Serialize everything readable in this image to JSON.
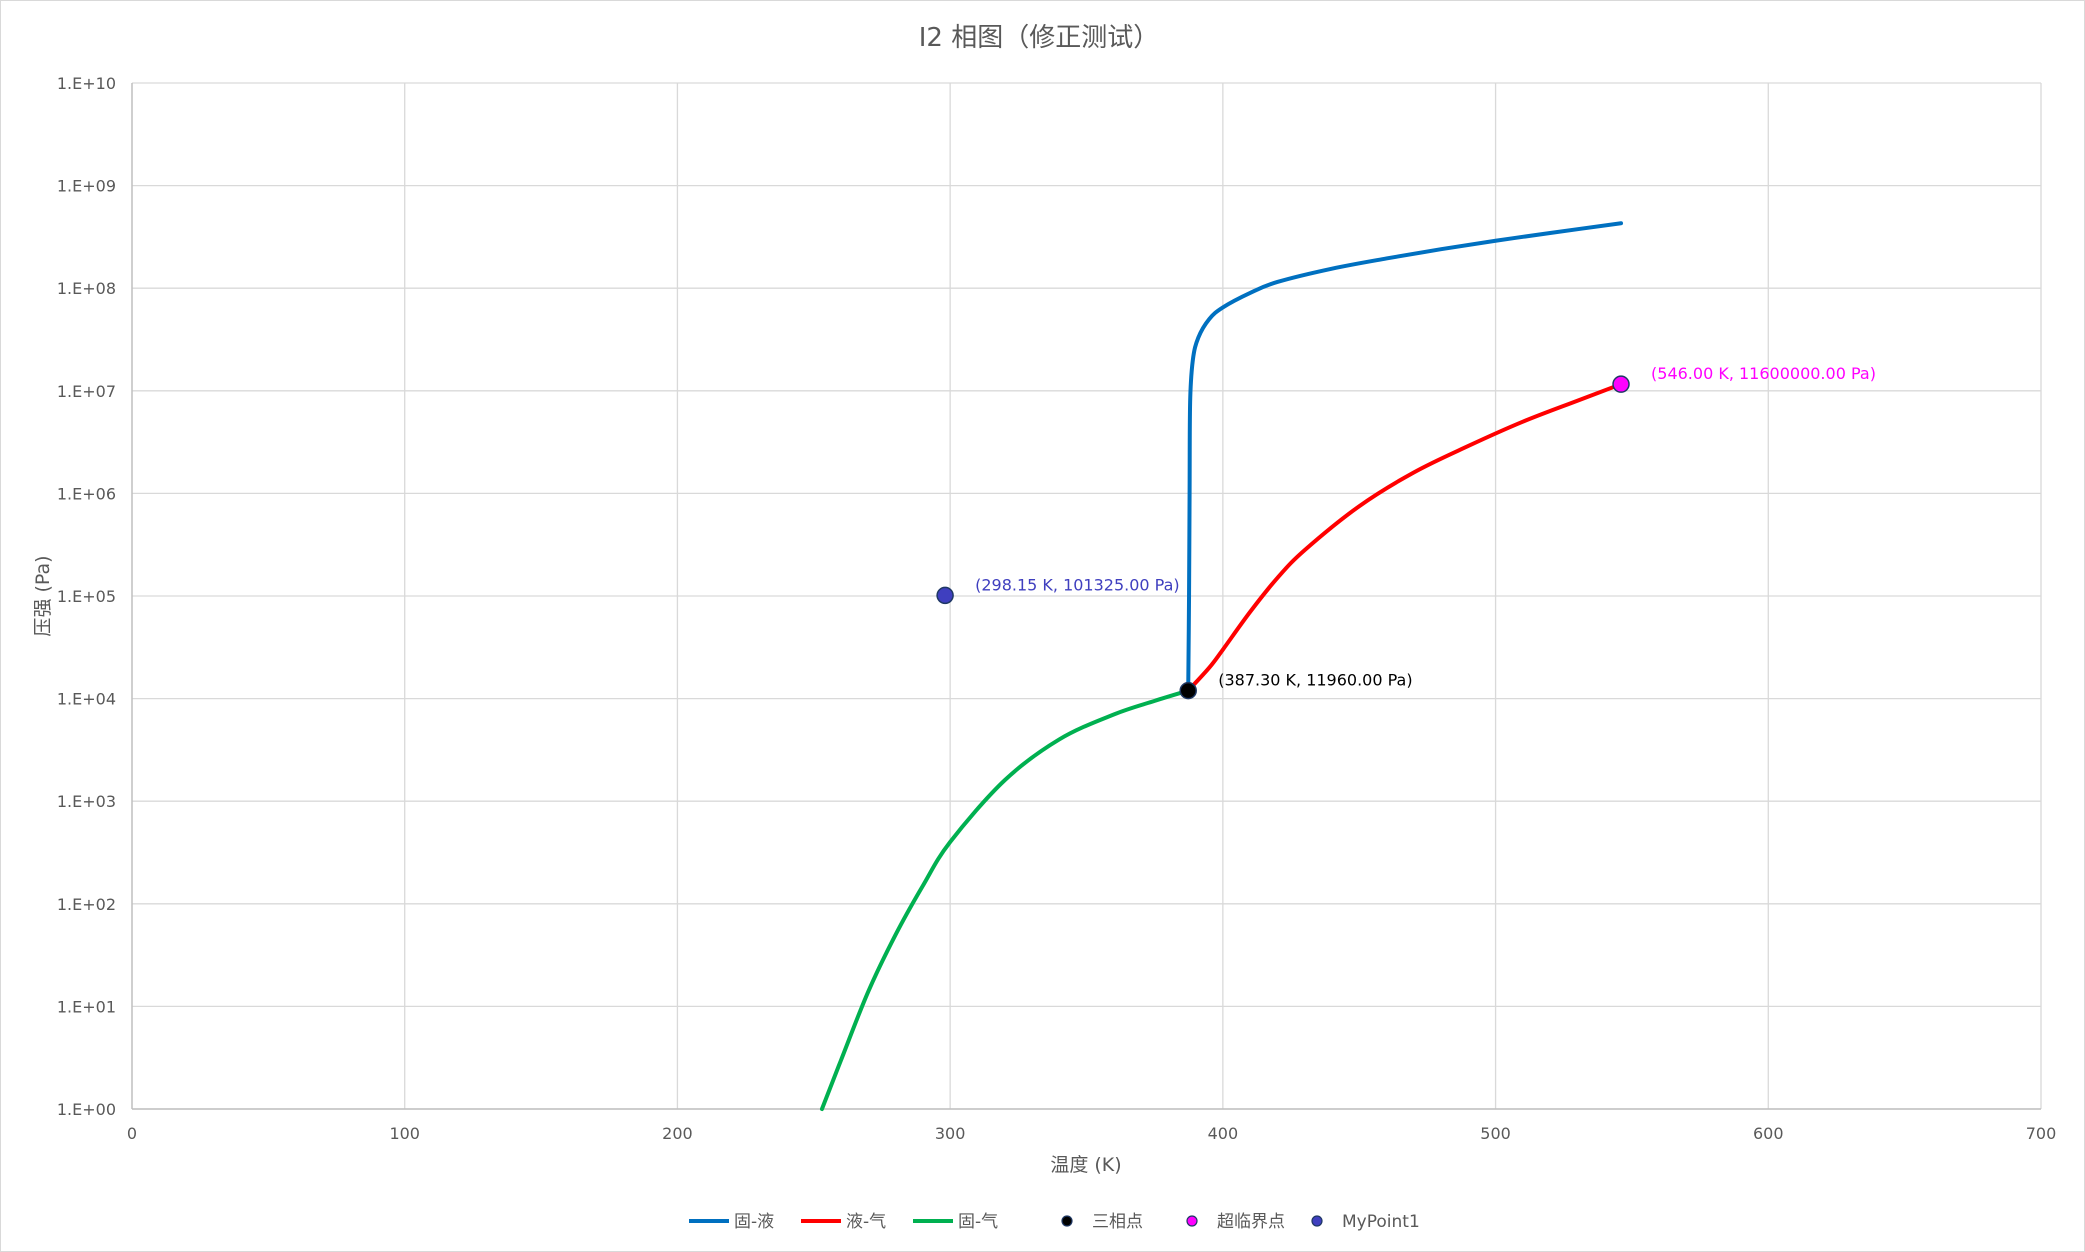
{
  "chart_data": {
    "type": "scatter",
    "title": "I2 相图（修正测试）",
    "xlabel": "温度 (K)",
    "ylabel": "压强 (Pa)",
    "xlim": [
      0,
      700
    ],
    "x_ticks": [
      0,
      100,
      200,
      300,
      400,
      500,
      600,
      700
    ],
    "y_scale": "log",
    "ylim": [
      1,
      10000000000
    ],
    "y_tick_labels": [
      "1.E+00",
      "1.E+01",
      "1.E+02",
      "1.E+03",
      "1.E+04",
      "1.E+05",
      "1.E+06",
      "1.E+07",
      "1.E+08",
      "1.E+09",
      "1.E+10"
    ],
    "grid": true,
    "legend_position": "bottom",
    "series": [
      {
        "name": "固-液",
        "kind": "line",
        "color": "#0070c0",
        "points": [
          [
            387.3,
            11960
          ],
          [
            387.6,
            100000
          ],
          [
            387.8,
            1000000
          ],
          [
            388.0,
            7800000
          ],
          [
            389,
            20000000
          ],
          [
            391,
            33000000
          ],
          [
            395,
            50000000
          ],
          [
            400,
            65000000
          ],
          [
            410,
            90000000
          ],
          [
            420,
            115000000
          ],
          [
            440,
            155000000
          ],
          [
            460,
            195000000
          ],
          [
            480,
            240000000
          ],
          [
            500,
            290000000
          ],
          [
            520,
            345000000
          ],
          [
            546,
            430000000
          ]
        ]
      },
      {
        "name": "液-气",
        "kind": "line",
        "color": "#ff0000",
        "points": [
          [
            387.3,
            11960
          ],
          [
            395,
            20000
          ],
          [
            400,
            30000
          ],
          [
            410,
            70000
          ],
          [
            420,
            150000
          ],
          [
            430,
            280000
          ],
          [
            450,
            750000
          ],
          [
            470,
            1600000
          ],
          [
            490,
            2900000
          ],
          [
            510,
            5000000
          ],
          [
            530,
            8000000
          ],
          [
            546,
            11600000
          ]
        ]
      },
      {
        "name": "固-气",
        "kind": "line",
        "color": "#00b050",
        "points": [
          [
            253,
            1
          ],
          [
            260,
            3
          ],
          [
            270,
            14
          ],
          [
            280,
            50
          ],
          [
            290,
            150
          ],
          [
            300,
            400
          ],
          [
            320,
            1600
          ],
          [
            340,
            4000
          ],
          [
            360,
            7000
          ],
          [
            375,
            9500
          ],
          [
            387.3,
            11960
          ]
        ]
      },
      {
        "name": "三相点",
        "kind": "point",
        "color": "#000000",
        "points": [
          [
            387.3,
            11960
          ]
        ],
        "label": "(387.30 K, 11960.00 Pa)",
        "label_color": "#000000"
      },
      {
        "name": "超临界点",
        "kind": "point",
        "color": "#ff00ff",
        "points": [
          [
            546.0,
            11600000
          ]
        ],
        "label": "(546.00 K, 11600000.00 Pa)",
        "label_color": "#ff00ff"
      },
      {
        "name": "MyPoint1",
        "kind": "point",
        "color": "#3f3fbf",
        "points": [
          [
            298.15,
            101325
          ]
        ],
        "label": "(298.15 K, 101325.00 Pa)",
        "label_color": "#3f3fbf"
      }
    ]
  }
}
